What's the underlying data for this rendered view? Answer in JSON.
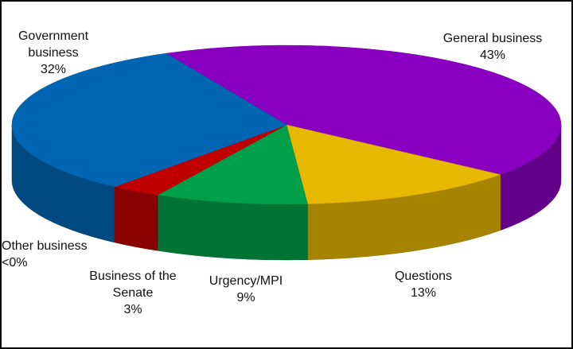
{
  "chart_data": {
    "type": "pie",
    "categories": [
      "General business",
      "Questions",
      "Urgency/MPI",
      "Business of the Senate",
      "Other business",
      "Government business"
    ],
    "values": [
      43,
      13,
      9,
      3,
      0,
      32
    ],
    "value_labels": [
      "43%",
      "13%",
      "9%",
      "3%",
      "<0%",
      "32%"
    ],
    "colors": [
      "#8a00c0",
      "#e6b800",
      "#00a04a",
      "#c00000",
      "#7f7f7f",
      "#0066b3"
    ]
  }
}
